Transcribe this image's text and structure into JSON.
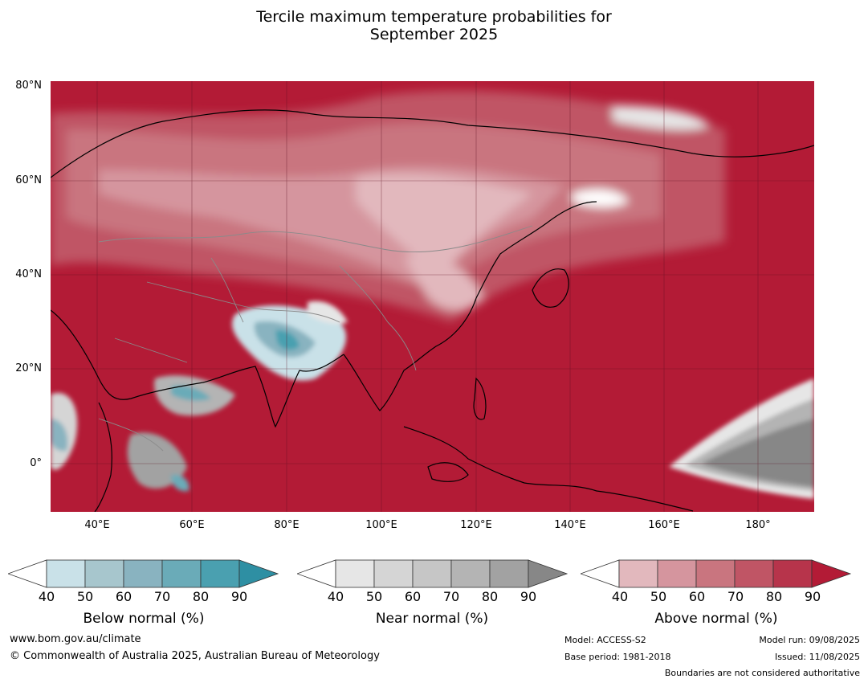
{
  "title": {
    "line1": "Tercile maximum temperature probabilities for",
    "line2": "September 2025"
  },
  "map": {
    "latitude_labels": [
      "80°N",
      "60°N",
      "40°N",
      "20°N",
      "0°"
    ],
    "longitude_labels": [
      "40°E",
      "60°E",
      "80°E",
      "100°E",
      "120°E",
      "140°E",
      "160°E",
      "180°"
    ],
    "region": "Asia",
    "base_color": "#b31b36"
  },
  "colorbars": {
    "below": {
      "label": "Below normal (%)",
      "ticks": [
        "40",
        "50",
        "60",
        "70",
        "80",
        "90"
      ],
      "colors": [
        "#ffffff",
        "#c9e1e8",
        "#a7c6cd",
        "#89b3c0",
        "#6aabb8",
        "#4aa0b0",
        "#2e8fa3"
      ]
    },
    "near": {
      "label": "Near normal (%)",
      "ticks": [
        "40",
        "50",
        "60",
        "70",
        "80",
        "90"
      ],
      "colors": [
        "#ffffff",
        "#e6e6e6",
        "#d5d5d5",
        "#c6c6c6",
        "#b4b4b4",
        "#a2a2a2",
        "#878787"
      ]
    },
    "above": {
      "label": "Above normal (%)",
      "ticks": [
        "40",
        "50",
        "60",
        "70",
        "80",
        "90"
      ],
      "colors": [
        "#ffffff",
        "#e2b8bd",
        "#d5959e",
        "#c9757f",
        "#c05565",
        "#b7344b",
        "#b31b36"
      ]
    }
  },
  "footer": {
    "website": "www.bom.gov.au/climate",
    "copyright": "© Commonwealth of Australia 2025, Australian Bureau of Meteorology",
    "model": "Model: ACCESS-S2",
    "base_period": "Base period: 1981-2018",
    "model_run": "Model run: 09/08/2025",
    "issued": "Issued: 11/08/2025",
    "disclaimer": "Boundaries are not considered authoritative"
  }
}
